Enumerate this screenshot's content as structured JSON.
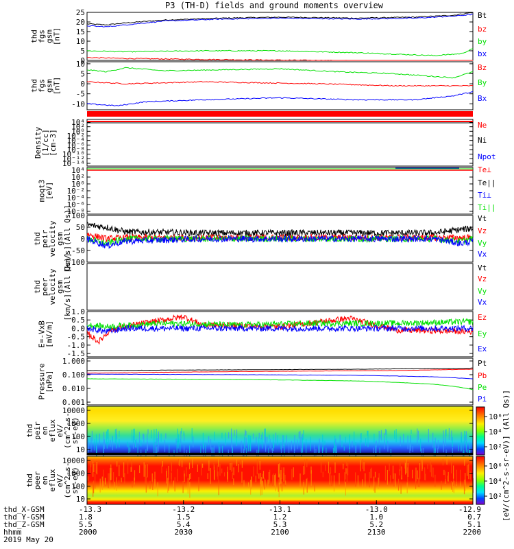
{
  "title": "P3 (TH-D) fields and ground moments overview",
  "colors": {
    "black": "#000000",
    "red": "#ff0000",
    "green": "#00e000",
    "blue": "#0000ff"
  },
  "chart_data": [
    {
      "type": "line",
      "panel_id": "bfield",
      "ylabel_lines": [
        "thd",
        "fgs",
        "gsm",
        "[nT]"
      ],
      "ylim": [
        0,
        25
      ],
      "yticks": [
        0,
        5,
        10,
        15,
        20,
        25
      ],
      "legend": [
        "Bt",
        "bz",
        "by",
        "bx"
      ],
      "series": [
        {
          "name": "Bt",
          "color": "black",
          "knots": [
            [
              0,
              19
            ],
            [
              0.05,
              18.5
            ],
            [
              0.1,
              19.5
            ],
            [
              0.2,
              21
            ],
            [
              0.35,
              22
            ],
            [
              0.5,
              22.5
            ],
            [
              0.7,
              22
            ],
            [
              0.85,
              22.5
            ],
            [
              0.95,
              23.5
            ],
            [
              1,
              25
            ]
          ]
        },
        {
          "name": "bz",
          "color": "red",
          "knots": [
            [
              0,
              1.5
            ],
            [
              0.1,
              1
            ],
            [
              0.3,
              0.5
            ],
            [
              0.6,
              0
            ],
            [
              0.8,
              -0.5
            ],
            [
              1,
              -0.5
            ]
          ]
        },
        {
          "name": "by",
          "color": "green",
          "knots": [
            [
              0,
              5
            ],
            [
              0.1,
              4.5
            ],
            [
              0.3,
              5
            ],
            [
              0.5,
              5
            ],
            [
              0.7,
              4
            ],
            [
              0.9,
              2.5
            ],
            [
              0.97,
              3.5
            ],
            [
              1,
              6
            ]
          ]
        },
        {
          "name": "bx",
          "color": "blue",
          "knots": [
            [
              0,
              18
            ],
            [
              0.05,
              17.5
            ],
            [
              0.1,
              18.5
            ],
            [
              0.2,
              20.5
            ],
            [
              0.35,
              21.5
            ],
            [
              0.5,
              22
            ],
            [
              0.7,
              21.5
            ],
            [
              0.85,
              22
            ],
            [
              0.95,
              23
            ],
            [
              1,
              24
            ]
          ]
        }
      ]
    },
    {
      "type": "line",
      "panel_id": "bgse",
      "ylabel_lines": [
        "thd",
        "fgs",
        "gsm",
        "[nT]"
      ],
      "ylim": [
        -13,
        11
      ],
      "yticks": [
        -10,
        -5,
        0,
        5,
        10
      ],
      "legend": [
        "Bz",
        "By",
        "Bx"
      ],
      "series": [
        {
          "name": "Bz",
          "color": "red",
          "knots": [
            [
              0,
              1
            ],
            [
              0.1,
              0
            ],
            [
              0.3,
              1
            ],
            [
              0.6,
              0
            ],
            [
              0.8,
              -1
            ],
            [
              1,
              -1
            ]
          ]
        },
        {
          "name": "By",
          "color": "green",
          "knots": [
            [
              0,
              7
            ],
            [
              0.05,
              6
            ],
            [
              0.1,
              8
            ],
            [
              0.2,
              6.5
            ],
            [
              0.35,
              7
            ],
            [
              0.5,
              7.5
            ],
            [
              0.65,
              6
            ],
            [
              0.8,
              5
            ],
            [
              0.95,
              3
            ],
            [
              1,
              6
            ]
          ]
        },
        {
          "name": "Bx",
          "color": "blue",
          "knots": [
            [
              0,
              -10
            ],
            [
              0.08,
              -11
            ],
            [
              0.15,
              -9
            ],
            [
              0.3,
              -8
            ],
            [
              0.5,
              -7
            ],
            [
              0.7,
              -8
            ],
            [
              0.85,
              -8
            ],
            [
              0.95,
              -6
            ],
            [
              1,
              -4
            ]
          ]
        }
      ]
    },
    {
      "type": "line",
      "panel_id": "density",
      "log": true,
      "ylabel_lines": [
        "Density",
        "[1/cc]",
        "[cm-3]"
      ],
      "yticks": [
        "10⁴",
        "10²",
        "10⁰",
        "10⁻²",
        "10⁻⁴",
        "10⁻⁶",
        "10⁻⁸",
        "10⁻¹⁰",
        "10⁻¹²",
        "10⁻¹⁴"
      ],
      "legend": [
        "Ne",
        "Ni",
        "Npot"
      ]
    },
    {
      "type": "line",
      "panel_id": "temperature",
      "log": true,
      "ylabel_lines": [
        "moqt3",
        "[eV]"
      ],
      "yticks": [
        "10⁴",
        "10²",
        "10⁰",
        "10⁻²",
        "10⁻⁴",
        "10⁻⁶",
        "10⁻⁸"
      ],
      "legend": [
        "Te⊥",
        "Te||",
        "Ti⊥",
        "Ti||"
      ]
    },
    {
      "type": "line",
      "panel_id": "ivel",
      "ylabel_lines": [
        "thd",
        "peir",
        "velocity",
        "gsm",
        "[km/s](All Qs)]"
      ],
      "ylim": [
        -100,
        100
      ],
      "yticks": [
        -100,
        -50,
        0,
        50,
        100
      ],
      "legend": [
        "Vt",
        "Vz",
        "Vy",
        "Vx"
      ],
      "series": [
        {
          "name": "Vt",
          "color": "black",
          "knots": [
            [
              0,
              60
            ],
            [
              0.05,
              50
            ],
            [
              0.1,
              30
            ],
            [
              0.3,
              25
            ],
            [
              0.5,
              25
            ],
            [
              0.7,
              25
            ],
            [
              0.9,
              25
            ],
            [
              0.97,
              40
            ],
            [
              1,
              45
            ]
          ]
        },
        {
          "name": "Vz",
          "color": "red",
          "knots": [
            [
              0,
              20
            ],
            [
              0.05,
              0
            ],
            [
              0.1,
              5
            ],
            [
              0.3,
              5
            ],
            [
              0.6,
              5
            ],
            [
              0.9,
              5
            ],
            [
              1,
              5
            ]
          ]
        },
        {
          "name": "Vy",
          "color": "green",
          "knots": [
            [
              0,
              0
            ],
            [
              0.05,
              -20
            ],
            [
              0.1,
              0
            ],
            [
              0.3,
              0
            ],
            [
              0.6,
              0
            ],
            [
              0.9,
              0
            ],
            [
              0.97,
              -10
            ],
            [
              1,
              0
            ]
          ]
        },
        {
          "name": "Vx",
          "color": "blue",
          "knots": [
            [
              0,
              0
            ],
            [
              0.05,
              -30
            ],
            [
              0.1,
              -10
            ],
            [
              0.3,
              0
            ],
            [
              0.6,
              0
            ],
            [
              0.9,
              0
            ],
            [
              0.97,
              -20
            ],
            [
              1,
              -10
            ]
          ]
        }
      ]
    },
    {
      "type": "line",
      "panel_id": "evel",
      "ylabel_lines": [
        "thd",
        "peer",
        "velocity",
        "gsm",
        "[km/s](All Qs)]"
      ],
      "legend": [
        "Vt",
        "Vz",
        "Vy",
        "Vx"
      ]
    },
    {
      "type": "line",
      "panel_id": "efield",
      "ylabel_lines": [
        "E=-VxB",
        "[mV/m]"
      ],
      "ylim": [
        -1.7,
        1.0
      ],
      "yticks": [
        "-1.5",
        "-1.0",
        "-0.5",
        "0.0",
        "0.5",
        "1.0"
      ],
      "legend": [
        "Ez",
        "Ey",
        "Ex"
      ],
      "series": [
        {
          "name": "Ez",
          "color": "red",
          "knots": [
            [
              0,
              -0.3
            ],
            [
              0.03,
              -0.8
            ],
            [
              0.06,
              -0.1
            ],
            [
              0.12,
              0.2
            ],
            [
              0.25,
              0.7
            ],
            [
              0.3,
              0.2
            ],
            [
              0.5,
              0.1
            ],
            [
              0.68,
              0.6
            ],
            [
              0.8,
              -0.1
            ],
            [
              1,
              -0.2
            ]
          ]
        },
        {
          "name": "Ey",
          "color": "green",
          "knots": [
            [
              0,
              0.2
            ],
            [
              0.05,
              0.1
            ],
            [
              0.2,
              0.3
            ],
            [
              0.4,
              0.2
            ],
            [
              0.6,
              0.3
            ],
            [
              0.8,
              0.3
            ],
            [
              1,
              0.4
            ]
          ]
        },
        {
          "name": "Ex",
          "color": "blue",
          "knots": [
            [
              0,
              0
            ],
            [
              0.05,
              -0.2
            ],
            [
              0.1,
              0
            ],
            [
              0.5,
              0
            ],
            [
              1,
              0
            ]
          ]
        }
      ]
    },
    {
      "type": "line",
      "panel_id": "pressure",
      "log": true,
      "ylabel_lines": [
        "Pressure",
        "[nPa]"
      ],
      "yticks": [
        "1.000",
        "0.100",
        "0.010",
        "0.001"
      ],
      "legend": [
        "Pt",
        "Pb",
        "Pe",
        "Pi"
      ],
      "series": [
        {
          "name": "Pt",
          "color": "black",
          "knots": [
            [
              0,
              0.2
            ],
            [
              0.3,
              0.22
            ],
            [
              0.7,
              0.25
            ],
            [
              1,
              0.3
            ]
          ]
        },
        {
          "name": "Pb",
          "color": "red",
          "knots": [
            [
              0,
              0.13
            ],
            [
              0.4,
              0.17
            ],
            [
              0.8,
              0.2
            ],
            [
              1,
              0.25
            ]
          ]
        },
        {
          "name": "Pe",
          "color": "green",
          "knots": [
            [
              0,
              0.05
            ],
            [
              0.4,
              0.045
            ],
            [
              0.7,
              0.035
            ],
            [
              0.9,
              0.02
            ],
            [
              1,
              0.008
            ]
          ]
        },
        {
          "name": "Pi",
          "color": "blue",
          "knots": [
            [
              0,
              0.11
            ],
            [
              0.4,
              0.1
            ],
            [
              0.7,
              0.09
            ],
            [
              0.9,
              0.07
            ],
            [
              1,
              0.05
            ]
          ]
        }
      ]
    },
    {
      "type": "heatmap",
      "panel_id": "ion-spec",
      "ylabel_lines": [
        "thd",
        "peir",
        "en",
        "eflux",
        "eV/",
        "(cm^2-s-",
        "sr-eV)"
      ],
      "yticks": [
        "10",
        "100",
        "1000",
        "10000"
      ],
      "colorbar_ticks": [
        "10⁶",
        "10⁴",
        "10²"
      ]
    },
    {
      "type": "heatmap",
      "panel_id": "elec-spec",
      "ylabel_lines": [
        "thd",
        "peer",
        "en",
        "eflux",
        "eV/",
        "(cm^2-s-",
        "sr-eV)"
      ],
      "yticks": [
        "10",
        "100",
        "1000",
        "10000"
      ],
      "colorbar_ticks": [
        "10⁶",
        "10⁴",
        "10²"
      ]
    }
  ],
  "colorbar_label": "[eV/(cm^2-s-sr-eV)] (All Qs)]",
  "xaxis": {
    "rows": [
      {
        "label": "thd_X-GSM",
        "values": [
          "-13.3",
          "-13.2",
          "-13.1",
          "-13.0",
          "-12.9"
        ]
      },
      {
        "label": "thd_Y-GSM",
        "values": [
          "1.8",
          "1.5",
          "1.2",
          "1.0",
          "0.7"
        ]
      },
      {
        "label": "thd_Z-GSM",
        "values": [
          "5.5",
          "5.4",
          "5.3",
          "5.2",
          "5.1"
        ]
      },
      {
        "label": "hhmm",
        "values": [
          "2000",
          "2030",
          "2100",
          "2130",
          "2200"
        ]
      }
    ],
    "date": "2019 May 20"
  }
}
